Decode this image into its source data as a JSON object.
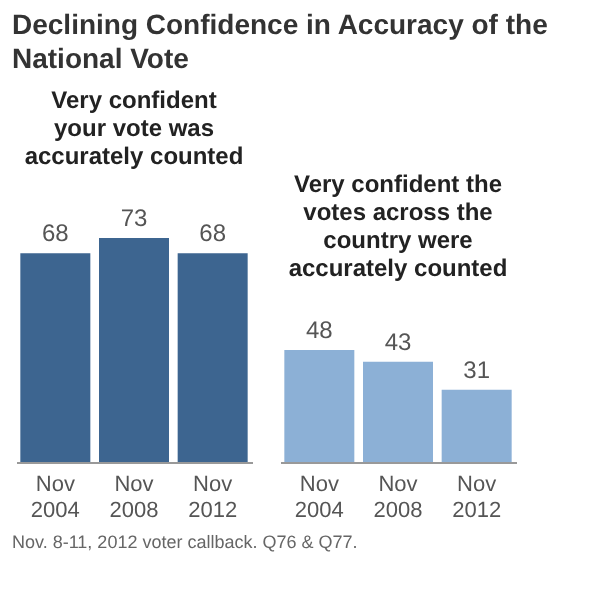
{
  "chart_data": [
    {
      "type": "bar",
      "title": "Declining Confidence in Accuracy of the National Vote",
      "subtitle": "Very confident your vote was accurately counted",
      "categories": [
        "Nov 2004",
        "Nov 2008",
        "Nov 2012"
      ],
      "values": [
        68,
        73,
        68
      ],
      "color": "#3d6590",
      "data_labels": true,
      "annotations": [
        "Nov. 8-11, 2012 voter callback. Q76 & Q77."
      ]
    },
    {
      "type": "bar",
      "subtitle": "Very confident the votes across the country were accurately counted",
      "categories": [
        "Nov 2004",
        "Nov 2008",
        "Nov 2012"
      ],
      "values": [
        48,
        43,
        31
      ],
      "color": "#8cb0d6",
      "data_labels": true
    }
  ]
}
